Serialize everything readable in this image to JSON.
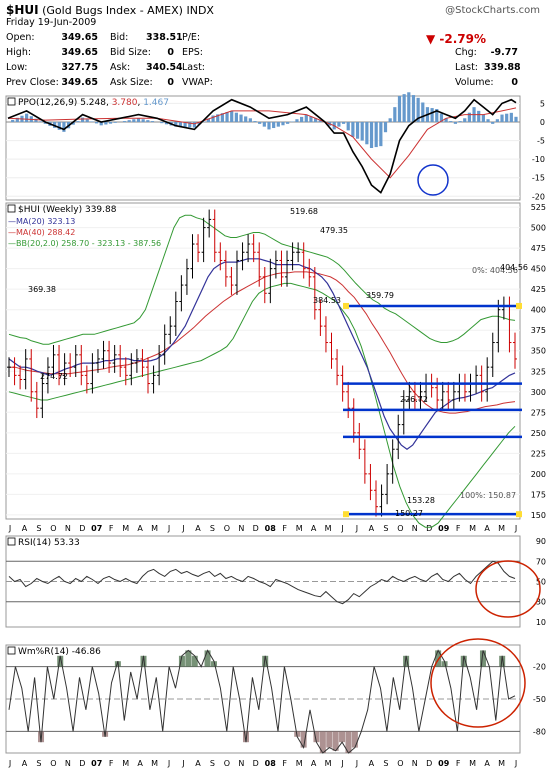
{
  "header": {
    "symbol": "$HUI",
    "name": "(Gold Bugs Index - AMEX)",
    "exchange": "INDX",
    "watermark": "@StockCharts.com",
    "date": "Friday 19-Jun-2009",
    "open_label": "Open:",
    "open": "349.65",
    "high_label": "High:",
    "high": "349.65",
    "low_label": "Low:",
    "low": "327.75",
    "prev_close_label": "Prev Close:",
    "prev_close": "349.65",
    "bid_label": "Bid:",
    "bid": "338.51",
    "bid_size_label": "Bid Size:",
    "bid_size": "0",
    "ask_label": "Ask:",
    "ask": "340.54",
    "ask_size_label": "Ask Size:",
    "ask_size": "0",
    "pe_label": "P/E:",
    "eps_label": "EPS:",
    "last_label_mid": "Last:",
    "vwap_label": "VWAP:",
    "change_pct": "-2.79%",
    "chg_label": "Chg:",
    "chg": "-9.77",
    "last_label": "Last:",
    "last": "339.88",
    "volume_label": "Volume:",
    "volume": "0"
  },
  "colors": {
    "up": "#000000",
    "down": "#cc0000",
    "ma20": "#333399",
    "ma40": "#cc3333",
    "bb": "#339933",
    "fib": "#0033cc",
    "ppo_line": "#000000",
    "ppo_signal": "#cc3333",
    "ppo_hist": "#6699cc",
    "annot": "#cc2200",
    "circle_blue": "#1133cc",
    "band_green": "#557755",
    "band_red": "#997777",
    "neg": "#cc0000",
    "ppo_signal_label": "#cc3333",
    "ppo_hist_label": "#6699cc",
    "bb_label": "#339933"
  },
  "chart_data": [
    {
      "type": "line",
      "panel": "ppo",
      "label": "PPO(12,26,9)",
      "values_text": [
        "5.248",
        "3.780",
        "1.467"
      ],
      "y_ticks": [
        5,
        0,
        -5,
        -10,
        -15,
        -20
      ],
      "ylim": [
        -21,
        7
      ],
      "series": [
        {
          "name": "PPO",
          "x": [
            0,
            4,
            8,
            12,
            16,
            20,
            24,
            28,
            32,
            36,
            40,
            44,
            48,
            52,
            56,
            60,
            64,
            68,
            70,
            72,
            74,
            76,
            78,
            80,
            82,
            84,
            86,
            88,
            90,
            92,
            94,
            96,
            98,
            100,
            102,
            104,
            106,
            108,
            109
          ],
          "values": [
            1,
            3,
            0,
            -2,
            2,
            0,
            1,
            2,
            1,
            -1,
            -2,
            3,
            6,
            4,
            1,
            2,
            4,
            0,
            -3,
            -3,
            -8,
            -12,
            -17,
            -19,
            -14,
            -5,
            -1,
            1,
            2,
            3,
            2,
            1,
            3,
            6,
            4,
            2,
            5,
            6,
            5.2
          ]
        },
        {
          "name": "Signal",
          "x": [
            0,
            8,
            16,
            24,
            32,
            40,
            48,
            56,
            64,
            70,
            74,
            78,
            82,
            86,
            90,
            94,
            98,
            102,
            106,
            109
          ],
          "values": [
            1,
            0.5,
            0.8,
            1,
            1,
            -0.5,
            3,
            3,
            2,
            -1,
            -4,
            -10,
            -15,
            -9,
            -2,
            1,
            2,
            2,
            3,
            3.8
          ]
        }
      ]
    },
    {
      "type": "line",
      "panel": "price",
      "label": "$HUI (Weekly)",
      "last": "339.88",
      "legend": [
        {
          "name": "MA(20)",
          "value": "323.13"
        },
        {
          "name": "MA(40)",
          "value": "288.42"
        },
        {
          "name": "BB(20,2.0)",
          "value": "258.70 - 323.13 - 387.56"
        }
      ],
      "y_ticks": [
        525,
        500,
        475,
        450,
        425,
        400,
        375,
        350,
        325,
        300,
        275,
        250,
        225,
        200,
        175,
        150
      ],
      "ylim": [
        145,
        530
      ],
      "x_labels": [
        "J",
        "A",
        "S",
        "O",
        "N",
        "D",
        "07",
        "F",
        "M",
        "A",
        "M",
        "J",
        "J",
        "A",
        "S",
        "O",
        "N",
        "D",
        "08",
        "F",
        "M",
        "A",
        "M",
        "J",
        "J",
        "A",
        "S",
        "O",
        "N",
        "D",
        "09",
        "F",
        "M",
        "A",
        "M",
        "J"
      ],
      "annotations": [
        "519.68",
        "479.35",
        "369.38",
        "384.53",
        "359.79",
        "274.72",
        "226.72",
        "153.28",
        "150.27",
        "404.56"
      ],
      "fib_labels": [
        "0%: 404.56",
        "100%: 150.87"
      ],
      "fib_levels": [
        404.56,
        310,
        278,
        245,
        150.87
      ],
      "close": [
        330,
        320,
        315,
        340,
        300,
        280,
        310,
        330,
        345,
        320,
        335,
        330,
        345,
        320,
        310,
        335,
        340,
        350,
        335,
        345,
        330,
        320,
        335,
        340,
        330,
        310,
        320,
        345,
        370,
        380,
        410,
        430,
        450,
        480,
        470,
        500,
        510,
        470,
        460,
        440,
        430,
        460,
        470,
        480,
        470,
        440,
        420,
        450,
        460,
        440,
        460,
        470,
        470,
        450,
        440,
        400,
        380,
        360,
        340,
        320,
        300,
        280,
        250,
        230,
        200,
        180,
        160,
        175,
        200,
        230,
        260,
        290,
        300,
        290,
        300,
        310,
        305,
        290,
        300,
        290,
        300,
        310,
        300,
        310,
        320,
        300,
        330,
        360,
        400,
        404,
        360,
        340
      ],
      "ma20": [
        340,
        335,
        330,
        330,
        328,
        325,
        323,
        320,
        322,
        325,
        328,
        330,
        333,
        335,
        335,
        335,
        336,
        338,
        338,
        340,
        340,
        340,
        338,
        338,
        337,
        338,
        340,
        345,
        352,
        360,
        370,
        380,
        395,
        410,
        425,
        440,
        450,
        455,
        458,
        458,
        458,
        460,
        462,
        462,
        462,
        460,
        458,
        455,
        455,
        455,
        455,
        455,
        452,
        450,
        445,
        440,
        432,
        420,
        405,
        390,
        375,
        360,
        345,
        330,
        310,
        290,
        270,
        255,
        245,
        235,
        230,
        235,
        245,
        255,
        265,
        275,
        280,
        285,
        290,
        292,
        293,
        295,
        297,
        300,
        303,
        305,
        310,
        315,
        320,
        323
      ],
      "ma40": [
        330,
        330,
        328,
        326,
        325,
        324,
        323,
        322,
        322,
        322,
        322,
        323,
        324,
        325,
        326,
        327,
        328,
        330,
        331,
        332,
        333,
        335,
        337,
        340,
        343,
        346,
        350,
        355,
        360,
        366,
        372,
        378,
        385,
        392,
        398,
        404,
        410,
        415,
        420,
        424,
        428,
        432,
        436,
        440,
        442,
        444,
        445,
        445,
        446,
        446,
        446,
        445,
        444,
        442,
        440,
        436,
        430,
        422,
        415,
        405,
        395,
        383,
        372,
        360,
        348,
        335,
        322,
        310,
        300,
        292,
        285,
        280,
        277,
        275,
        274,
        274,
        275,
        276,
        278,
        280,
        282,
        283,
        284,
        286,
        287,
        288
      ],
      "bb_upper": [
        370,
        368,
        366,
        365,
        362,
        360,
        358,
        358,
        360,
        362,
        364,
        366,
        368,
        370,
        370,
        370,
        372,
        374,
        376,
        378,
        380,
        382,
        384,
        390,
        400,
        420,
        440,
        460,
        480,
        500,
        512,
        515,
        515,
        512,
        510,
        505,
        500,
        495,
        490,
        488,
        488,
        490,
        492,
        494,
        494,
        492,
        488,
        484,
        480,
        478,
        476,
        474,
        472,
        470,
        468,
        466,
        464,
        460,
        455,
        448,
        440,
        432,
        425,
        418,
        412,
        408,
        402,
        398,
        395,
        390,
        385,
        380,
        375,
        370,
        365,
        362,
        360,
        360,
        362,
        365,
        370,
        376,
        382,
        388,
        390,
        392,
        392,
        390,
        388,
        387
      ],
      "bb_lower": [
        300,
        298,
        296,
        294,
        292,
        290,
        290,
        292,
        294,
        296,
        298,
        300,
        302,
        304,
        306,
        308,
        310,
        312,
        314,
        316,
        318,
        320,
        322,
        324,
        326,
        328,
        330,
        332,
        334,
        336,
        338,
        342,
        346,
        350,
        355,
        365,
        380,
        395,
        410,
        420,
        425,
        428,
        430,
        432,
        432,
        430,
        428,
        426,
        424,
        420,
        415,
        410,
        400,
        390,
        375,
        355,
        330,
        300,
        270,
        240,
        210,
        185,
        165,
        150,
        140,
        135,
        135,
        140,
        150,
        160,
        170,
        180,
        190,
        200,
        210,
        220,
        230,
        240,
        250,
        258
      ]
    },
    {
      "type": "line",
      "panel": "rsi",
      "label": "RSI(14)",
      "value": "53.33",
      "y_ticks": [
        90,
        70,
        50,
        30,
        10
      ],
      "ylim": [
        5,
        95
      ],
      "values": [
        55,
        50,
        52,
        45,
        48,
        53,
        50,
        48,
        52,
        55,
        50,
        48,
        53,
        50,
        55,
        52,
        48,
        53,
        55,
        52,
        50,
        53,
        50,
        48,
        55,
        60,
        62,
        58,
        55,
        60,
        62,
        58,
        60,
        57,
        55,
        58,
        60,
        55,
        58,
        53,
        55,
        52,
        50,
        55,
        53,
        50,
        48,
        45,
        52,
        50,
        48,
        45,
        42,
        40,
        38,
        36,
        35,
        40,
        35,
        30,
        28,
        32,
        38,
        35,
        40,
        45,
        48,
        52,
        50,
        55,
        52,
        50,
        53,
        55,
        52,
        50,
        55,
        58,
        52,
        50,
        55,
        58,
        52,
        48,
        55,
        60,
        65,
        70,
        68,
        60,
        55,
        53
      ]
    },
    {
      "type": "line",
      "panel": "williams",
      "label": "Wm%R(14)",
      "value": "-46.86",
      "y_ticks": [
        -20,
        -50,
        -80
      ],
      "ylim": [
        -100,
        0
      ],
      "values": [
        -60,
        -20,
        -40,
        -80,
        -30,
        -90,
        -20,
        -50,
        -10,
        -40,
        -80,
        -30,
        -60,
        -20,
        -45,
        -85,
        -35,
        -15,
        -70,
        -25,
        -50,
        -10,
        -60,
        -30,
        -80,
        -20,
        -40,
        -10,
        -5,
        -10,
        -20,
        -5,
        -15,
        -40,
        -80,
        -20,
        -50,
        -90,
        -30,
        -60,
        -10,
        -40,
        -80,
        -20,
        -50,
        -85,
        -95,
        -60,
        -90,
        -100,
        -95,
        -98,
        -90,
        -100,
        -95,
        -80,
        -60,
        -20,
        -40,
        -80,
        -30,
        -60,
        -10,
        -40,
        -80,
        -50,
        -20,
        -5,
        -15,
        -40,
        -80,
        -10,
        -30,
        -60,
        -5,
        -20,
        -70,
        -10,
        -50,
        -47
      ]
    }
  ]
}
